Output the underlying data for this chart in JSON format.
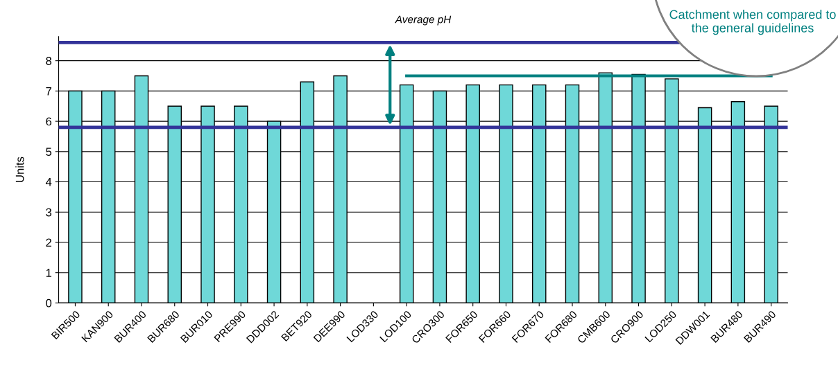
{
  "chart_data": {
    "type": "bar",
    "title": "Average pH",
    "ylabel": "Units",
    "categories": [
      "BIR500",
      "KAN900",
      "BUR400",
      "BUR680",
      "BUR010",
      "PRE990",
      "DDD002",
      "BET920",
      "DEE990",
      "LOD330",
      "LOD100",
      "CRO300",
      "FOR650",
      "FOR660",
      "FOR670",
      "FOR680",
      "CMB600",
      "CRO900",
      "LOD250",
      "DDW001",
      "BUR480",
      "BUR490"
    ],
    "series": [
      {
        "color": "#6fd8d8",
        "values": [
          7.0,
          7.0,
          7.5,
          6.5,
          6.5,
          6.5,
          6.0,
          7.3,
          7.5,
          null,
          7.2,
          7.0,
          7.2,
          7.2,
          7.2,
          7.2,
          7.6,
          7.55,
          7.4,
          6.45,
          6.65,
          6.5
        ]
      },
      {
        "type": "line",
        "color": "#008080",
        "values": [
          null,
          null,
          null,
          null,
          null,
          null,
          null,
          null,
          null,
          null,
          7.5,
          7.5,
          7.5,
          7.5,
          7.5,
          7.5,
          7.5,
          7.5,
          7.5,
          7.5,
          7.5,
          7.5
        ]
      }
    ],
    "ylim": [
      0,
      8.8
    ],
    "yticks": [
      0,
      1,
      2,
      3,
      4,
      5,
      6,
      7,
      8
    ],
    "grid": "y",
    "legend": false,
    "ref_lines": [
      {
        "axis": "y",
        "value": 8.6,
        "color": "#333399"
      },
      {
        "axis": "y",
        "value": 5.8,
        "color": "#333399"
      }
    ],
    "annotations": [
      "Catchment when compared to the general guidelines"
    ]
  }
}
